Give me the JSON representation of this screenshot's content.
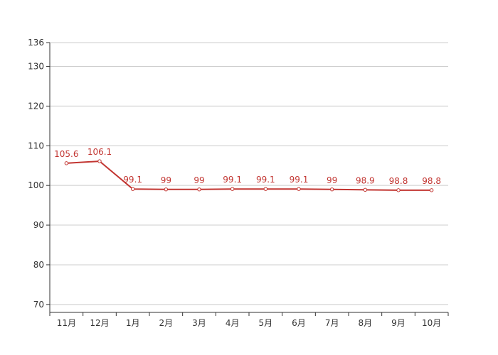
{
  "chart_data": {
    "type": "line",
    "categories": [
      "11月",
      "12月",
      "1月",
      "2月",
      "3月",
      "4月",
      "5月",
      "6月",
      "7月",
      "8月",
      "9月",
      "10月"
    ],
    "series": [
      {
        "values": [
          105.6,
          106.1,
          99.1,
          99,
          99,
          99.1,
          99.1,
          99.1,
          99,
          98.9,
          98.8,
          98.8
        ]
      }
    ],
    "data_labels": [
      "105.6",
      "106.1",
      "99.1",
      "99",
      "99",
      "99.1",
      "99.1",
      "99.1",
      "99",
      "98.9",
      "98.8",
      "98.8"
    ],
    "yticks": [
      70,
      80,
      90,
      100,
      110,
      120,
      130,
      136
    ],
    "ytick_labels": [
      "70",
      "80",
      "90",
      "100",
      "110",
      "120",
      "130",
      "136"
    ],
    "ylim": [
      68,
      136
    ],
    "grid": true,
    "legend": "none",
    "colors": {
      "line": "#c23531",
      "grid": "#cccccc",
      "axis": "#333333"
    }
  }
}
